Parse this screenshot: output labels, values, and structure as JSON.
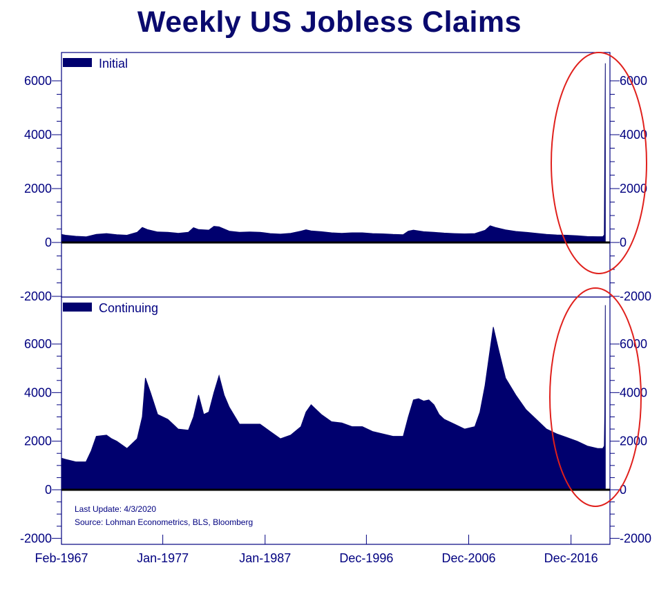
{
  "title": "Weekly US Jobless Claims",
  "note": {
    "last_update": "Last Update: 4/3/2020",
    "source": "Source: Lohman Econometrics, BLS, Bloomberg"
  },
  "colors": {
    "series": "#00006e",
    "axis": "#000080",
    "zero_line": "#000000",
    "highlight": "#e0201c"
  },
  "chart_data": [
    {
      "type": "area",
      "legend": "Initial",
      "legend_position": "top-left",
      "grid": false,
      "ylim": [
        -2000,
        7000
      ],
      "yticks": [
        "-2000",
        "0",
        "2000",
        "4000",
        "6000"
      ],
      "x_range": [
        1967.1,
        2020.3
      ],
      "xtick_labels": [
        "Feb-1967",
        "Jan-1977",
        "Jan-1987",
        "Dec-1996",
        "Dec-2006",
        "Dec-2016"
      ],
      "x": [
        1967.1,
        1967.5,
        1968.5,
        1969.5,
        1970.5,
        1971.5,
        1972.5,
        1973.5,
        1974.5,
        1975.0,
        1975.5,
        1976.5,
        1977.5,
        1978.5,
        1979.5,
        1980.0,
        1980.5,
        1981.5,
        1982.0,
        1982.5,
        1983.5,
        1984.5,
        1985.5,
        1986.5,
        1987.5,
        1988.5,
        1989.5,
        1990.5,
        1991.0,
        1991.5,
        1992.5,
        1993.5,
        1994.5,
        1995.5,
        1996.5,
        1997.5,
        1998.5,
        1999.5,
        2000.5,
        2001.0,
        2001.5,
        2002.5,
        2003.5,
        2004.5,
        2005.5,
        2006.5,
        2007.5,
        2008.5,
        2009.0,
        2009.5,
        2010.5,
        2011.5,
        2012.5,
        2013.5,
        2014.5,
        2015.5,
        2016.5,
        2017.5,
        2018.5,
        2019.5,
        2020.0,
        2020.15,
        2020.2,
        2020.25
      ],
      "values": [
        300,
        270,
        230,
        210,
        300,
        330,
        290,
        270,
        380,
        560,
        480,
        390,
        380,
        340,
        380,
        550,
        480,
        460,
        600,
        580,
        420,
        380,
        390,
        380,
        330,
        310,
        340,
        420,
        470,
        430,
        400,
        360,
        340,
        360,
        360,
        330,
        320,
        300,
        290,
        420,
        460,
        400,
        380,
        350,
        330,
        320,
        330,
        450,
        620,
        560,
        470,
        410,
        380,
        340,
        300,
        280,
        270,
        250,
        220,
        215,
        215,
        280,
        3300,
        6650
      ]
    },
    {
      "type": "area",
      "legend": "Continuing",
      "legend_position": "top-left",
      "grid": false,
      "ylim": [
        -2000,
        7800
      ],
      "yticks": [
        "-2000",
        "0",
        "2000",
        "4000",
        "6000"
      ],
      "x_range": [
        1967.1,
        2020.3
      ],
      "xtick_labels": [
        "Feb-1967",
        "Jan-1977",
        "Jan-1987",
        "Dec-1996",
        "Dec-2006",
        "Dec-2016"
      ],
      "x": [
        1967.1,
        1967.5,
        1968.5,
        1969.5,
        1970.0,
        1970.5,
        1971.5,
        1972.0,
        1972.5,
        1973.5,
        1974.5,
        1975.0,
        1975.3,
        1975.8,
        1976.5,
        1977.5,
        1978.5,
        1979.5,
        1980.0,
        1980.5,
        1981.0,
        1981.5,
        1982.0,
        1982.5,
        1983.0,
        1983.5,
        1984.5,
        1985.5,
        1986.5,
        1987.5,
        1988.5,
        1989.5,
        1990.5,
        1991.0,
        1991.5,
        1992.0,
        1992.5,
        1993.5,
        1994.5,
        1995.5,
        1996.5,
        1997.5,
        1998.5,
        1999.5,
        2000.5,
        2001.0,
        2001.5,
        2002.0,
        2002.5,
        2003.0,
        2003.5,
        2004.0,
        2004.5,
        2005.5,
        2006.5,
        2007.5,
        2008.0,
        2008.5,
        2009.0,
        2009.3,
        2009.8,
        2010.5,
        2011.5,
        2012.5,
        2013.5,
        2014.5,
        2015.5,
        2016.5,
        2017.5,
        2018.5,
        2019.5,
        2020.0,
        2020.15,
        2020.2,
        2020.25
      ],
      "values": [
        1300,
        1250,
        1150,
        1150,
        1600,
        2200,
        2250,
        2100,
        2000,
        1700,
        2100,
        3000,
        4600,
        4000,
        3100,
        2900,
        2500,
        2450,
        3000,
        3900,
        3100,
        3200,
        4000,
        4700,
        3900,
        3400,
        2700,
        2700,
        2700,
        2400,
        2100,
        2250,
        2600,
        3200,
        3500,
        3300,
        3100,
        2800,
        2750,
        2600,
        2600,
        2400,
        2300,
        2200,
        2200,
        3000,
        3700,
        3750,
        3650,
        3700,
        3500,
        3100,
        2900,
        2700,
        2500,
        2600,
        3200,
        4300,
        5800,
        6700,
        5800,
        4600,
        3900,
        3300,
        2900,
        2500,
        2300,
        2150,
        2000,
        1800,
        1700,
        1700,
        1800,
        3100,
        7600
      ]
    }
  ]
}
